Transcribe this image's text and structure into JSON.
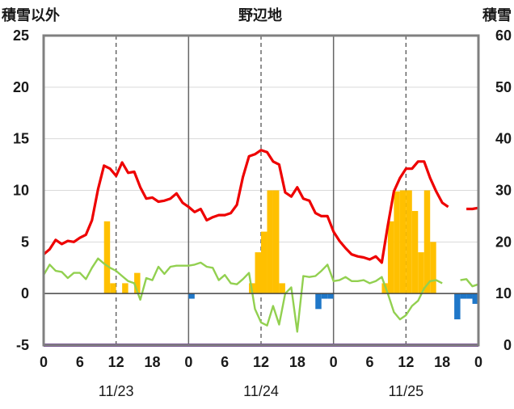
{
  "chart_data": {
    "type": "bar+line",
    "title": "野辺地",
    "left_axis_label": "積雪以外",
    "right_axis_label": "積雪",
    "left_ylim": [
      -5,
      25
    ],
    "left_ticks": [
      -5,
      0,
      5,
      10,
      15,
      20,
      25
    ],
    "right_ylim": [
      0,
      60
    ],
    "right_ticks": [
      0,
      10,
      20,
      30,
      40,
      50,
      60
    ],
    "xlim_hours": [
      0,
      72
    ],
    "x_tick_hours": [
      0,
      6,
      12,
      18,
      24,
      30,
      36,
      42,
      48,
      54,
      60,
      66,
      72
    ],
    "x_tick_labels": [
      "0",
      "6",
      "12",
      "18",
      "0",
      "6",
      "12",
      "18",
      "0",
      "6",
      "12",
      "18",
      "0"
    ],
    "day_labels": [
      {
        "hour": 12,
        "label": "11/23"
      },
      {
        "hour": 36,
        "label": "11/24"
      },
      {
        "hour": 60,
        "label": "11/25"
      }
    ],
    "day_divider_hours": [
      24,
      48
    ],
    "midday_hours": [
      12,
      36,
      60
    ],
    "colors": {
      "red": "#ee0000",
      "green": "#92d050",
      "orange": "#ffc000",
      "blue": "#1f77c8",
      "purple": "#7030a0"
    },
    "series": [
      {
        "key": "red",
        "type": "line",
        "axis": "left",
        "points": [
          [
            0,
            3.8
          ],
          [
            1,
            4.3
          ],
          [
            2,
            5.2
          ],
          [
            3,
            4.8
          ],
          [
            4,
            5.1
          ],
          [
            5,
            5.0
          ],
          [
            6,
            5.4
          ],
          [
            7,
            5.7
          ],
          [
            8,
            7.1
          ],
          [
            9,
            10.1
          ],
          [
            10,
            12.4
          ],
          [
            11,
            12.1
          ],
          [
            12,
            11.4
          ],
          [
            13,
            12.7
          ],
          [
            14,
            11.7
          ],
          [
            15,
            11.8
          ],
          [
            16,
            10.3
          ],
          [
            17,
            9.2
          ],
          [
            18,
            9.3
          ],
          [
            19,
            8.9
          ],
          [
            20,
            9.0
          ],
          [
            21,
            9.2
          ],
          [
            22,
            9.7
          ],
          [
            23,
            8.8
          ],
          [
            24,
            8.4
          ],
          [
            25,
            7.9
          ],
          [
            26,
            8.2
          ],
          [
            27,
            7.1
          ],
          [
            28,
            7.4
          ],
          [
            29,
            7.6
          ],
          [
            30,
            7.6
          ],
          [
            31,
            7.8
          ],
          [
            32,
            8.6
          ],
          [
            33,
            11.3
          ],
          [
            34,
            13.3
          ],
          [
            35,
            13.5
          ],
          [
            36,
            13.9
          ],
          [
            37,
            13.7
          ],
          [
            38,
            12.8
          ],
          [
            39,
            12.5
          ],
          [
            40,
            9.8
          ],
          [
            41,
            9.4
          ],
          [
            42,
            10.3
          ],
          [
            43,
            9.2
          ],
          [
            44,
            9.0
          ],
          [
            45,
            7.8
          ],
          [
            46,
            7.5
          ],
          [
            47,
            7.5
          ],
          [
            48,
            6.0
          ],
          [
            49,
            5.1
          ],
          [
            50,
            4.4
          ],
          [
            51,
            3.8
          ],
          [
            52,
            3.6
          ],
          [
            53,
            3.5
          ],
          [
            54,
            3.3
          ],
          [
            55,
            3.6
          ],
          [
            56,
            3.0
          ],
          [
            57,
            6.6
          ],
          [
            58,
            9.9
          ],
          [
            59,
            11.2
          ],
          [
            60,
            12.1
          ],
          [
            61,
            12.1
          ],
          [
            62,
            12.8
          ],
          [
            63,
            12.8
          ],
          [
            64,
            11.2
          ],
          [
            65,
            9.9
          ],
          [
            66,
            8.8
          ],
          [
            67,
            8.4
          ]
        ],
        "points_b": [
          [
            70,
            8.2
          ],
          [
            71,
            8.2
          ],
          [
            72,
            8.3
          ]
        ]
      },
      {
        "key": "green",
        "type": "line",
        "axis": "left",
        "points": [
          [
            0,
            1.8
          ],
          [
            1,
            2.8
          ],
          [
            2,
            2.2
          ],
          [
            3,
            2.1
          ],
          [
            4,
            1.5
          ],
          [
            5,
            2.0
          ],
          [
            6,
            2.0
          ],
          [
            7,
            1.4
          ],
          [
            8,
            2.5
          ],
          [
            9,
            3.4
          ],
          [
            10,
            2.9
          ],
          [
            11,
            2.5
          ],
          [
            12,
            2.2
          ],
          [
            13,
            1.7
          ],
          [
            14,
            1.2
          ],
          [
            15,
            1.0
          ],
          [
            16,
            -0.6
          ],
          [
            17,
            1.5
          ],
          [
            18,
            1.3
          ],
          [
            19,
            2.6
          ],
          [
            20,
            1.9
          ],
          [
            21,
            2.6
          ],
          [
            22,
            2.7
          ],
          [
            23,
            2.7
          ],
          [
            24,
            2.7
          ],
          [
            25,
            2.8
          ],
          [
            26,
            3.0
          ],
          [
            27,
            2.6
          ],
          [
            28,
            2.5
          ],
          [
            29,
            1.3
          ],
          [
            30,
            1.8
          ],
          [
            31,
            1.0
          ],
          [
            32,
            0.9
          ],
          [
            33,
            1.4
          ],
          [
            34,
            2.0
          ],
          [
            35,
            -1.5
          ],
          [
            36,
            -2.8
          ],
          [
            37,
            -3.1
          ],
          [
            38,
            -1.2
          ],
          [
            39,
            -3.0
          ],
          [
            40,
            0.0
          ],
          [
            41,
            0.6
          ],
          [
            42,
            -3.7
          ],
          [
            43,
            1.7
          ],
          [
            44,
            1.6
          ],
          [
            45,
            1.7
          ],
          [
            46,
            2.2
          ],
          [
            47,
            2.8
          ],
          [
            48,
            1.2
          ],
          [
            49,
            1.3
          ],
          [
            50,
            1.6
          ],
          [
            51,
            1.2
          ],
          [
            52,
            1.2
          ],
          [
            53,
            1.3
          ],
          [
            54,
            1.0
          ],
          [
            55,
            1.2
          ],
          [
            56,
            1.6
          ],
          [
            57,
            0.0
          ],
          [
            58,
            -1.8
          ],
          [
            59,
            -2.5
          ],
          [
            60,
            -2.1
          ],
          [
            61,
            -1.2
          ],
          [
            62,
            -0.7
          ],
          [
            63,
            0.5
          ],
          [
            64,
            1.2
          ],
          [
            65,
            1.3
          ],
          [
            66,
            1.0
          ]
        ],
        "points_b": [
          [
            69,
            1.3
          ],
          [
            70,
            1.4
          ],
          [
            71,
            0.7
          ],
          [
            72,
            0.9
          ]
        ]
      },
      {
        "key": "orange",
        "type": "bar",
        "axis": "left",
        "hours": [
          10,
          11,
          13,
          15,
          34,
          35,
          36,
          37,
          38,
          39,
          40,
          41,
          56,
          57,
          58,
          59,
          60,
          61,
          62,
          63,
          64,
          65
        ],
        "values": [
          7.0,
          1.0,
          1.0,
          2.0,
          1.0,
          4.0,
          6.0,
          10.0,
          10.0,
          1.0,
          0,
          0,
          1.0,
          7.0,
          9.9,
          10.0,
          10.0,
          8.0,
          4.0,
          10.0,
          5.0,
          0
        ]
      },
      {
        "key": "blue",
        "type": "bar",
        "axis": "left",
        "hours": [
          24,
          44,
          45,
          46,
          47,
          68,
          69,
          70,
          71
        ],
        "values": [
          -0.5,
          0,
          -1.5,
          -0.5,
          -0.5,
          -2.5,
          -0.5,
          -0.5,
          -1.0
        ]
      },
      {
        "key": "purple",
        "type": "line",
        "axis": "right",
        "points": [
          [
            0,
            0
          ],
          [
            72,
            0
          ]
        ]
      }
    ]
  }
}
